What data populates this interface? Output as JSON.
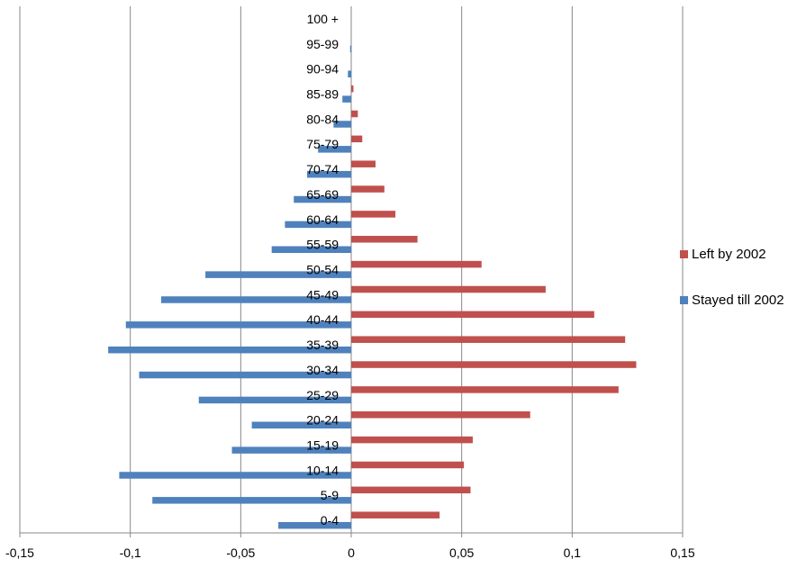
{
  "chart_data": {
    "type": "bar",
    "orientation": "horizontal",
    "categories": [
      "0-4",
      "5-9",
      "10-14",
      "15-19",
      "20-24",
      "25-29",
      "30-34",
      "35-39",
      "40-44",
      "45-49",
      "50-54",
      "55-59",
      "60-64",
      "65-69",
      "70-74",
      "75-79",
      "80-84",
      "85-89",
      "90-94",
      "95-99",
      "100 +"
    ],
    "series": [
      {
        "name": "Stayed till 2002",
        "color": "#4f81bd",
        "values": [
          -0.033,
          -0.09,
          -0.105,
          -0.054,
          -0.045,
          -0.069,
          -0.096,
          -0.11,
          -0.102,
          -0.086,
          -0.066,
          -0.036,
          -0.03,
          -0.026,
          -0.02,
          -0.015,
          -0.008,
          -0.004,
          -0.0015,
          -0.0005,
          0
        ]
      },
      {
        "name": "Left by 2002",
        "color": "#c0504d",
        "values": [
          0.04,
          0.054,
          0.051,
          0.055,
          0.081,
          0.121,
          0.129,
          0.124,
          0.11,
          0.088,
          0.059,
          0.03,
          0.02,
          0.015,
          0.011,
          0.005,
          0.003,
          0.001,
          0,
          0,
          0
        ]
      }
    ],
    "xlim": [
      -0.15,
      0.15
    ],
    "xticks": [
      -0.15,
      -0.1,
      -0.05,
      0,
      0.05,
      0.1,
      0.15
    ],
    "xtick_labels": [
      "-0,15",
      "-0,1",
      "-0,05",
      "0",
      "0,05",
      "0,1",
      "0,15"
    ],
    "grid": true,
    "legend_position": "right"
  }
}
